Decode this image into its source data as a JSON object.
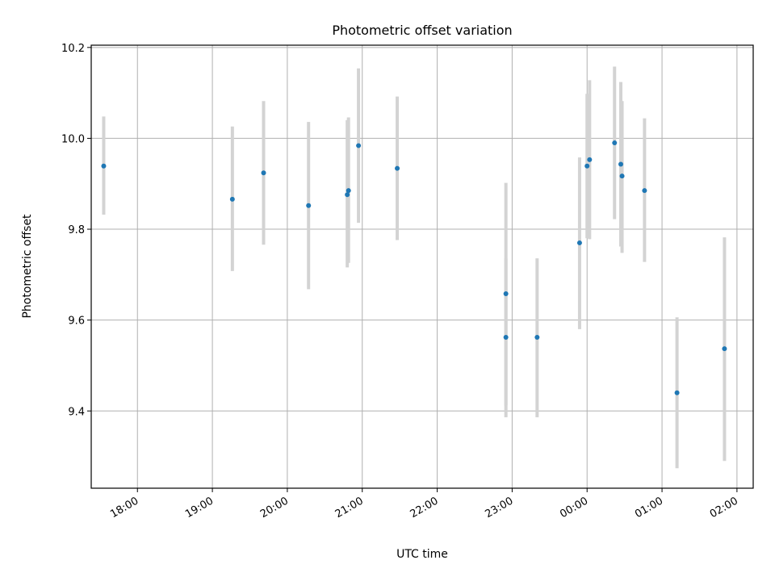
{
  "chart_data": {
    "type": "scatter",
    "title": "Photometric offset variation",
    "xlabel": "UTC time",
    "ylabel": "Photometric offset",
    "x_is_time": true,
    "x_start_time": "17:00",
    "xlim": [
      "17:23",
      "02:13"
    ],
    "ylim": [
      9.23,
      10.205
    ],
    "xticks": [
      "18:00",
      "19:00",
      "20:00",
      "21:00",
      "22:00",
      "23:00",
      "00:00",
      "01:00",
      "02:00"
    ],
    "yticks": [
      9.4,
      9.6,
      9.8,
      10.0,
      10.2
    ],
    "ytick_labels": [
      "9.4",
      "9.6",
      "9.8",
      "10.0",
      "10.2"
    ],
    "grid": true,
    "colors": {
      "point": "#1f77b4",
      "errorbar": "#d3d3d3",
      "grid": "#b0b0b0"
    },
    "points": [
      {
        "x": "17:33",
        "y": 9.939,
        "ylo": 9.832,
        "yhi": 10.048
      },
      {
        "x": "19:16",
        "y": 9.866,
        "ylo": 9.708,
        "yhi": 10.026
      },
      {
        "x": "19:41",
        "y": 9.924,
        "ylo": 9.766,
        "yhi": 10.082
      },
      {
        "x": "20:17",
        "y": 9.852,
        "ylo": 9.668,
        "yhi": 10.036
      },
      {
        "x": "20:48",
        "y": 9.876,
        "ylo": 9.716,
        "yhi": 10.04
      },
      {
        "x": "20:49",
        "y": 9.885,
        "ylo": 9.726,
        "yhi": 10.046
      },
      {
        "x": "20:57",
        "y": 9.984,
        "ylo": 9.814,
        "yhi": 10.154
      },
      {
        "x": "21:28",
        "y": 9.934,
        "ylo": 9.776,
        "yhi": 10.092
      },
      {
        "x": "22:55",
        "y": 9.658,
        "ylo": 9.412,
        "yhi": 9.902
      },
      {
        "x": "22:55",
        "y": 9.562,
        "ylo": 9.386,
        "yhi": 9.736
      },
      {
        "x": "23:20",
        "y": 9.562,
        "ylo": 9.386,
        "yhi": 9.736
      },
      {
        "x": "23:54",
        "y": 9.77,
        "ylo": 9.58,
        "yhi": 9.958
      },
      {
        "x": "00:00",
        "y": 9.939,
        "ylo": 9.78,
        "yhi": 10.098
      },
      {
        "x": "00:02",
        "y": 9.953,
        "ylo": 9.778,
        "yhi": 10.128
      },
      {
        "x": "00:22",
        "y": 9.99,
        "ylo": 9.822,
        "yhi": 10.158
      },
      {
        "x": "00:27",
        "y": 9.943,
        "ylo": 9.762,
        "yhi": 10.124
      },
      {
        "x": "00:28",
        "y": 9.917,
        "ylo": 9.748,
        "yhi": 10.082
      },
      {
        "x": "00:46",
        "y": 9.885,
        "ylo": 9.728,
        "yhi": 10.044
      },
      {
        "x": "01:12",
        "y": 9.44,
        "ylo": 9.274,
        "yhi": 9.606
      },
      {
        "x": "01:50",
        "y": 9.537,
        "ylo": 9.29,
        "yhi": 9.782
      }
    ]
  }
}
